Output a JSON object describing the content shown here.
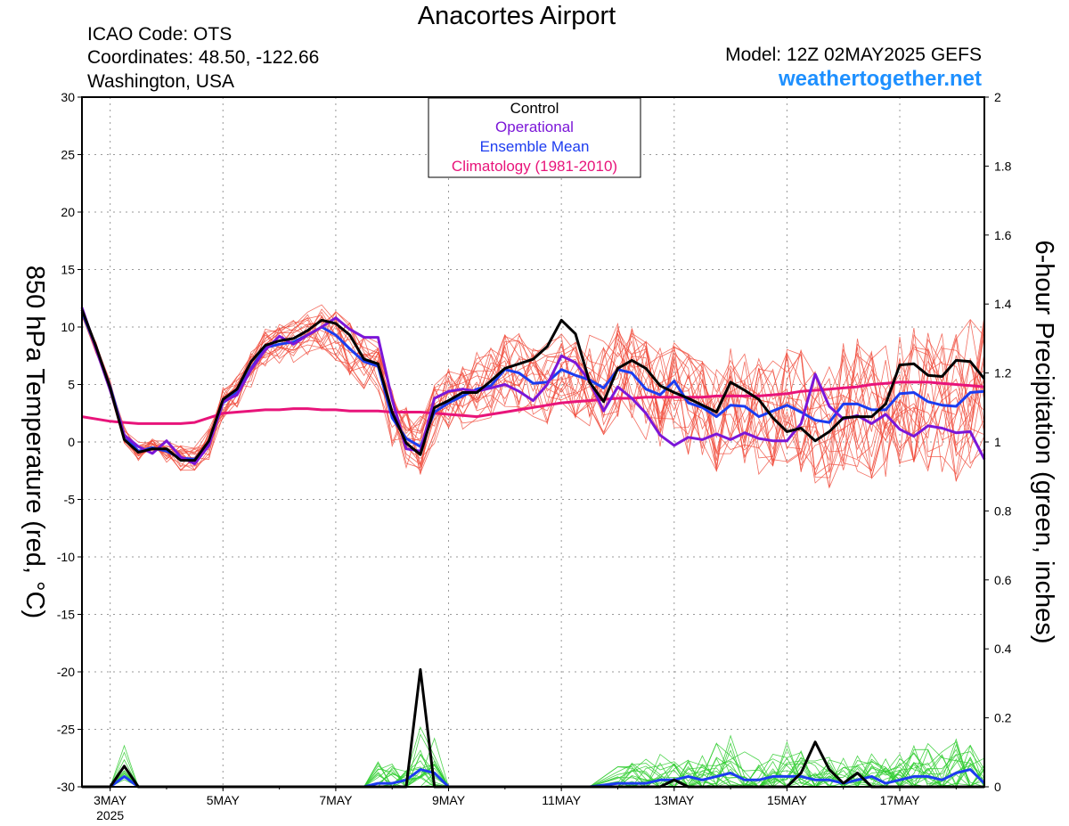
{
  "header": {
    "title": "Anacortes Airport",
    "icao": "ICAO Code: OTS",
    "coords": "Coordinates: 48.50, -122.66",
    "location": "Washington, USA",
    "model": "Model: 12Z 02MAY2025 GEFS",
    "site": "weathertogether.net"
  },
  "colors": {
    "control": "#000000",
    "operational": "#7b16d8",
    "ensemble_mean": "#1c3cf0",
    "climatology": "#e8147a",
    "members_temp": "#f04a3a",
    "members_precip": "#2ecc2e",
    "site": "#1e90ff"
  },
  "chart_data": {
    "type": "line",
    "ylabel": "850 hPa Temperature (red, °C)",
    "y2label": "6-hour Precipitation (green, inches)",
    "ylim": [
      -30,
      30
    ],
    "y2lim": [
      0,
      2
    ],
    "yticks": [
      "30",
      "25",
      "20",
      "15",
      "10",
      "5",
      "0",
      "-5",
      "-10",
      "-15",
      "-20",
      "-25",
      "-30"
    ],
    "y2ticks": [
      "2",
      "1.8",
      "1.6",
      "1.4",
      "1.2",
      "1",
      "0.8",
      "0.6",
      "0.4",
      "0.2",
      "0"
    ],
    "xticks": [
      {
        "label": "3MAY",
        "sub": "2025",
        "day": 3
      },
      {
        "label": "5MAY",
        "sub": "",
        "day": 5
      },
      {
        "label": "7MAY",
        "sub": "",
        "day": 7
      },
      {
        "label": "9MAY",
        "sub": "",
        "day": 9
      },
      {
        "label": "11MAY",
        "sub": "",
        "day": 11
      },
      {
        "label": "13MAY",
        "sub": "",
        "day": 13
      },
      {
        "label": "15MAY",
        "sub": "",
        "day": 15
      },
      {
        "label": "17MAY",
        "sub": "",
        "day": 17
      }
    ],
    "xlim": [
      2.5,
      18.5
    ],
    "grid": true,
    "legend": {
      "position": "top-center",
      "entries": [
        {
          "name": "Control",
          "color": "#000000"
        },
        {
          "name": "Operational",
          "color": "#7b16d8"
        },
        {
          "name": "Ensemble Mean",
          "color": "#1c3cf0"
        },
        {
          "name": "Climatology (1981-2010)",
          "color": "#e8147a"
        }
      ]
    },
    "x": [
      2.5,
      2.75,
      3.0,
      3.25,
      3.5,
      3.75,
      4.0,
      4.25,
      4.5,
      4.75,
      5.0,
      5.25,
      5.5,
      5.75,
      6.0,
      6.25,
      6.5,
      6.75,
      7.0,
      7.25,
      7.5,
      7.75,
      8.0,
      8.25,
      8.5,
      8.75,
      9.0,
      9.25,
      9.5,
      9.75,
      10.0,
      10.25,
      10.5,
      10.75,
      11.0,
      11.25,
      11.5,
      11.75,
      12.0,
      12.25,
      12.5,
      12.75,
      13.0,
      13.25,
      13.5,
      13.75,
      14.0,
      14.25,
      14.5,
      14.75,
      15.0,
      15.25,
      15.5,
      15.75,
      16.0,
      16.25,
      16.5,
      16.75,
      17.0,
      17.25,
      17.5,
      17.75,
      18.0,
      18.25,
      18.5
    ],
    "temperature_series": [
      {
        "name": "Control",
        "values": [
          11.5,
          8.3,
          4.7,
          0.2,
          -0.9,
          -0.6,
          -0.6,
          -1.6,
          -1.6,
          0.1,
          3.7,
          4.6,
          7.0,
          8.4,
          8.8,
          9.0,
          9.7,
          10.6,
          10.3,
          9.3,
          7.2,
          6.8,
          2.6,
          -0.1,
          -1.1,
          3.0,
          3.6,
          4.3,
          4.3,
          5.3,
          6.4,
          6.8,
          7.2,
          8.3,
          10.6,
          9.4,
          5.2,
          3.5,
          6.4,
          7.1,
          6.4,
          4.9,
          4.3,
          3.8,
          3.2,
          2.6,
          5.2,
          4.5,
          3.7,
          2.1,
          0.9,
          1.2,
          0.1,
          0.9,
          2.1,
          2.2,
          2.2,
          3.3,
          6.7,
          6.8,
          5.8,
          5.7,
          7.1,
          7.0,
          5.5
        ]
      },
      {
        "name": "Operational",
        "values": [
          11.7,
          8.1,
          4.5,
          0.6,
          -0.4,
          -1.0,
          0.1,
          -1.3,
          -1.9,
          -0.3,
          3.5,
          4.1,
          6.3,
          8.0,
          9.2,
          8.5,
          9.3,
          10.0,
          10.8,
          9.8,
          9.1,
          9.1,
          3.7,
          -0.6,
          -0.8,
          3.8,
          4.4,
          4.6,
          4.4,
          4.7,
          5.0,
          4.4,
          3.6,
          5.0,
          7.5,
          6.9,
          5.3,
          2.7,
          4.8,
          3.8,
          2.5,
          0.6,
          -0.3,
          0.4,
          0.2,
          0.7,
          0.2,
          0.8,
          0.3,
          0.1,
          0.1,
          1.6,
          5.9,
          3.1,
          2.0,
          2.3,
          1.6,
          2.4,
          1.1,
          0.5,
          1.4,
          1.2,
          0.8,
          0.9,
          -1.5
        ]
      },
      {
        "name": "Ensemble Mean",
        "values": [
          11.3,
          8.2,
          4.8,
          0.6,
          -0.8,
          -0.5,
          -0.8,
          -1.4,
          -1.5,
          -0.2,
          3.4,
          4.3,
          6.4,
          8.2,
          8.5,
          8.7,
          9.3,
          10.0,
          9.3,
          8.1,
          7.0,
          6.6,
          2.1,
          0.3,
          -0.4,
          2.6,
          3.4,
          4.0,
          4.6,
          4.9,
          6.3,
          6.0,
          5.1,
          5.2,
          6.3,
          5.8,
          5.4,
          4.7,
          6.3,
          6.0,
          4.6,
          4.1,
          5.3,
          3.4,
          3.0,
          2.2,
          3.2,
          3.1,
          2.2,
          2.7,
          3.2,
          2.6,
          1.9,
          1.7,
          3.3,
          3.3,
          2.8,
          2.8,
          4.2,
          4.3,
          3.5,
          3.2,
          3.1,
          4.3,
          4.4
        ]
      },
      {
        "name": "Climatology (1981-2010)",
        "values": [
          2.2,
          2.0,
          1.8,
          1.7,
          1.6,
          1.6,
          1.6,
          1.6,
          1.7,
          2.1,
          2.5,
          2.6,
          2.7,
          2.8,
          2.8,
          2.9,
          2.9,
          2.8,
          2.8,
          2.7,
          2.7,
          2.7,
          2.6,
          2.6,
          2.6,
          2.5,
          2.4,
          2.3,
          2.2,
          2.4,
          2.6,
          2.8,
          3.0,
          3.2,
          3.4,
          3.5,
          3.6,
          3.7,
          3.8,
          3.8,
          3.9,
          3.9,
          3.9,
          3.9,
          3.9,
          4.0,
          4.0,
          4.0,
          4.0,
          4.1,
          4.2,
          4.4,
          4.5,
          4.6,
          4.7,
          4.8,
          5.0,
          5.1,
          5.2,
          5.2,
          5.2,
          5.1,
          5.0,
          4.9,
          4.8
        ]
      }
    ],
    "precip_x": [
      2.5,
      2.75,
      3.0,
      3.25,
      3.5,
      3.75,
      4.0,
      4.5,
      5.0,
      5.5,
      6.0,
      6.5,
      7.0,
      7.5,
      7.75,
      8.0,
      8.25,
      8.5,
      8.75,
      9.0,
      9.5,
      10.0,
      10.5,
      11.0,
      11.5,
      12.0,
      12.25,
      12.5,
      12.75,
      13.0,
      13.25,
      13.5,
      13.75,
      14.0,
      14.25,
      14.5,
      14.75,
      15.0,
      15.25,
      15.5,
      15.75,
      16.0,
      16.25,
      16.5,
      16.75,
      17.0,
      17.25,
      17.5,
      17.75,
      18.0,
      18.25,
      18.5
    ],
    "precip_series": [
      {
        "name": "Control",
        "values": [
          0.0,
          0.0,
          0.0,
          0.06,
          0.0,
          0.0,
          0.0,
          0.0,
          0.0,
          0.0,
          0.0,
          0.0,
          0.0,
          0.0,
          0.0,
          0.0,
          0.0,
          0.34,
          0.0,
          0.0,
          0.0,
          0.0,
          0.0,
          0.0,
          0.0,
          0.0,
          0.0,
          0.0,
          0.0,
          0.02,
          0.0,
          0.0,
          0.0,
          0.0,
          0.0,
          0.0,
          0.0,
          0.0,
          0.04,
          0.13,
          0.05,
          0.01,
          0.04,
          0.0,
          0.0,
          0.0,
          0.0,
          0.0,
          0.0,
          0.0,
          0.0,
          0.0
        ]
      },
      {
        "name": "Ensemble Mean",
        "values": [
          0.0,
          0.0,
          0.0,
          0.03,
          0.0,
          0.0,
          0.0,
          0.0,
          0.0,
          0.0,
          0.0,
          0.0,
          0.0,
          0.0,
          0.01,
          0.01,
          0.02,
          0.05,
          0.04,
          0.0,
          0.0,
          0.0,
          0.0,
          0.0,
          0.0,
          0.01,
          0.01,
          0.01,
          0.02,
          0.02,
          0.03,
          0.02,
          0.03,
          0.04,
          0.02,
          0.02,
          0.03,
          0.03,
          0.03,
          0.02,
          0.02,
          0.01,
          0.02,
          0.03,
          0.01,
          0.02,
          0.03,
          0.03,
          0.02,
          0.04,
          0.05,
          0.01
        ]
      }
    ]
  }
}
